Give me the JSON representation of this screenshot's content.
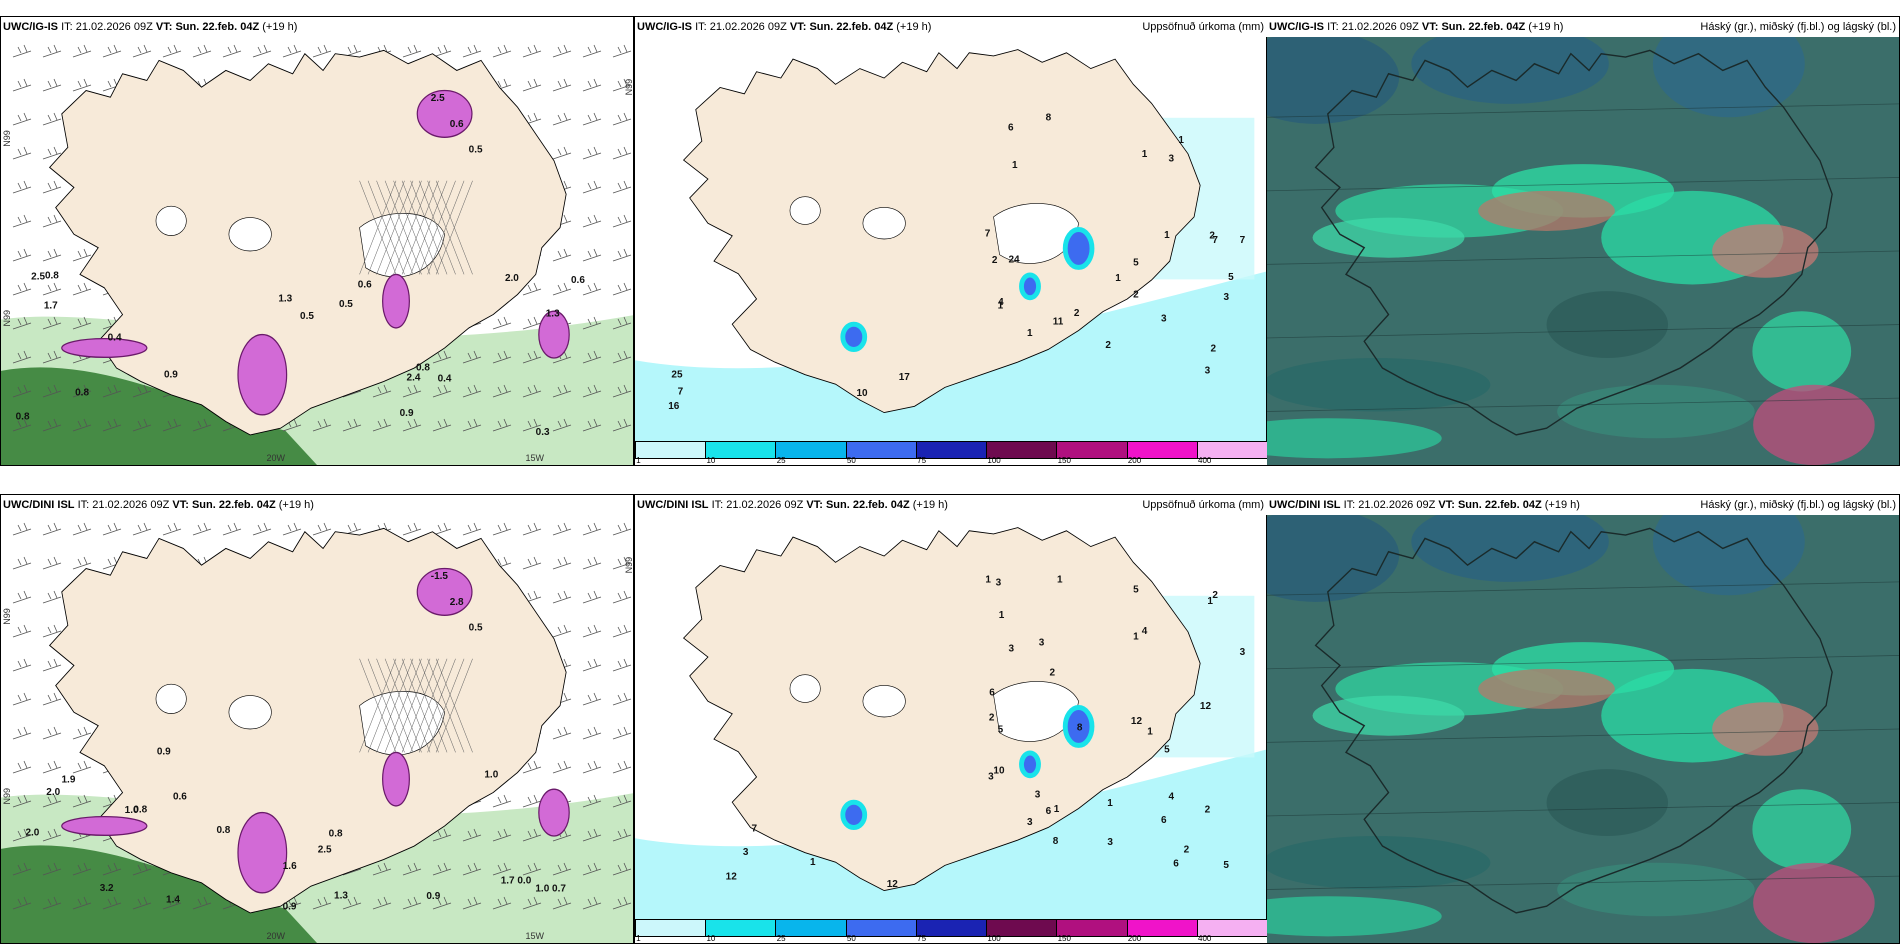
{
  "rows": [
    {
      "panels": [
        {
          "kind": "precip-type",
          "model": "UWC/IG-IS",
          "it_label": "IT:",
          "it_value": "21.02.2026 09Z",
          "vt_label": "VT:",
          "vt_value": "Sun. 22.feb. 04Z",
          "lead": "(+19 h)",
          "right_title": "",
          "coords": [
            "N99",
            "N99",
            "N99",
            "20W",
            "15W"
          ],
          "labels": [
            "2.5",
            "0.6",
            "0.5",
            "0.8",
            "0.3",
            "0.8",
            "0.5",
            "1.3",
            "0.8",
            "2.5",
            "0.4",
            "2.0",
            "1.3",
            "0.5",
            "0.9",
            "0.8",
            "0.6",
            "0.6",
            "0.9",
            "1.7",
            "2.4",
            "0.4"
          ]
        },
        {
          "kind": "accum",
          "model": "UWC/IG-IS",
          "it_label": "IT:",
          "it_value": "21.02.2026 09Z",
          "vt_label": "VT:",
          "vt_value": "Sun. 22.feb. 04Z",
          "lead": "(+19 h)",
          "right_title": "Uppsöfnuð úrkoma (mm)",
          "labels": [
            "2",
            "6",
            "2",
            "4",
            "3",
            "1",
            "1",
            "2",
            "7",
            "2",
            "1",
            "2",
            "5",
            "2",
            "3",
            "3",
            "7",
            "1",
            "11",
            "1",
            "1",
            "1",
            "24",
            "5",
            "3",
            "8",
            "7",
            "7",
            "16",
            "17",
            "10",
            "25"
          ]
        },
        {
          "kind": "cloud",
          "model": "UWC/IG-IS",
          "it_label": "IT:",
          "it_value": "21.02.2026 09Z",
          "vt_label": "VT:",
          "vt_value": "Sun. 22.feb. 04Z",
          "lead": "(+19 h)",
          "right_title": "Háský (gr.), miðský (fj.bl.) og lágský (bl.)"
        }
      ]
    },
    {
      "panels": [
        {
          "kind": "precip-type",
          "model": "UWC/DINI ISL",
          "it_label": "IT:",
          "it_value": "21.02.2026 09Z",
          "vt_label": "VT:",
          "vt_value": "Sun. 22.feb. 04Z",
          "lead": "(+19 h)",
          "right_title": "",
          "coords": [
            "N99",
            "N99",
            "N99",
            "20W",
            "15W"
          ],
          "labels": [
            "-1.5",
            "2.8",
            "0.5",
            "1.4",
            "1.7 0.0",
            "0.9",
            "0.9",
            "0.6",
            "1.0",
            "0.9",
            "0.8",
            "1.0",
            "2.0",
            "1.0 0.7",
            "1.3",
            "0.8",
            "1.6",
            "2.0",
            "2.5",
            "3.2",
            "1.9",
            "0.8"
          ]
        },
        {
          "kind": "accum",
          "model": "UWC/DINI ISL",
          "it_label": "IT:",
          "it_value": "21.02.2026 09Z",
          "vt_label": "VT:",
          "vt_value": "Sun. 22.feb. 04Z",
          "lead": "(+19 h)",
          "right_title": "Uppsöfnuð úrkoma (mm)",
          "labels": [
            "5",
            "6",
            "4",
            "3",
            "4",
            "8",
            "5",
            "5",
            "3",
            "3",
            "1",
            "2",
            "6",
            "2",
            "10",
            "1",
            "2",
            "1",
            "3",
            "2",
            "3",
            "1",
            "1",
            "2",
            "6",
            "1",
            "3",
            "1",
            "8",
            "12",
            "6",
            "5",
            "12",
            "3",
            "3",
            "1",
            "3",
            "12",
            "7",
            "12",
            "1"
          ]
        },
        {
          "kind": "cloud",
          "model": "UWC/DINI ISL",
          "it_label": "IT:",
          "it_value": "21.02.2026 09Z",
          "vt_label": "VT:",
          "vt_value": "Sun. 22.feb. 04Z",
          "lead": "(+19 h)",
          "right_title": "Háský (gr.), miðský (fj.bl.) og lágský (bl.)"
        }
      ]
    }
  ],
  "legend": {
    "colors": [
      "#ccf7fb",
      "#19e3ea",
      "#08b5ec",
      "#3d6bf0",
      "#1a23b3",
      "#6e0a4f",
      "#b0107f",
      "#f013c9",
      "#f5b0f2"
    ],
    "ticks": [
      "1",
      "10",
      "25",
      "50",
      "75",
      "100",
      "150",
      "200",
      "400"
    ]
  },
  "colors": {
    "land": "#f7ead9",
    "snow_green_light": "#c8e8c3",
    "snow_green_dark": "#2f7a2f",
    "pink": "#d26ad6",
    "cloud_base": "#3b6e6a",
    "cloud_high": "#2ddba6"
  }
}
